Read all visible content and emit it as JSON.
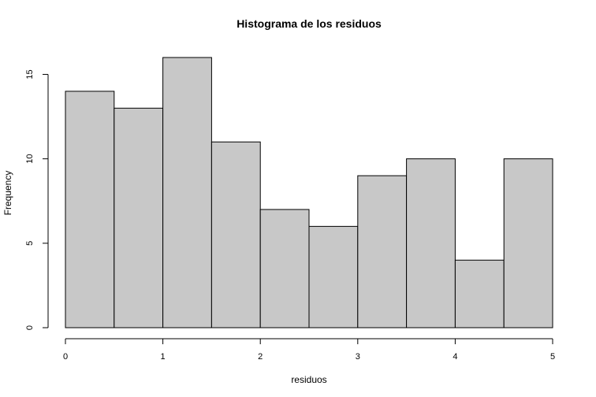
{
  "chart_data": {
    "type": "bar",
    "title": "Histograma de los residuos",
    "xlabel": "residuos",
    "ylabel": "Frequency",
    "bins": [
      {
        "start": 0.0,
        "end": 0.5,
        "count": 14
      },
      {
        "start": 0.5,
        "end": 1.0,
        "count": 13
      },
      {
        "start": 1.0,
        "end": 1.5,
        "count": 16
      },
      {
        "start": 1.5,
        "end": 2.0,
        "count": 11
      },
      {
        "start": 2.0,
        "end": 2.5,
        "count": 7
      },
      {
        "start": 2.5,
        "end": 3.0,
        "count": 6
      },
      {
        "start": 3.0,
        "end": 3.5,
        "count": 9
      },
      {
        "start": 3.5,
        "end": 4.0,
        "count": 10
      },
      {
        "start": 4.0,
        "end": 4.5,
        "count": 4
      },
      {
        "start": 4.5,
        "end": 5.0,
        "count": 10
      }
    ],
    "xlim": [
      0,
      5
    ],
    "ylim": [
      0,
      16
    ],
    "xticks": [
      0,
      1,
      2,
      3,
      4,
      5
    ],
    "yticks": [
      0,
      5,
      10,
      15
    ],
    "grid": false,
    "bar_color": "#c8c8c8",
    "edge_color": "#000000"
  }
}
